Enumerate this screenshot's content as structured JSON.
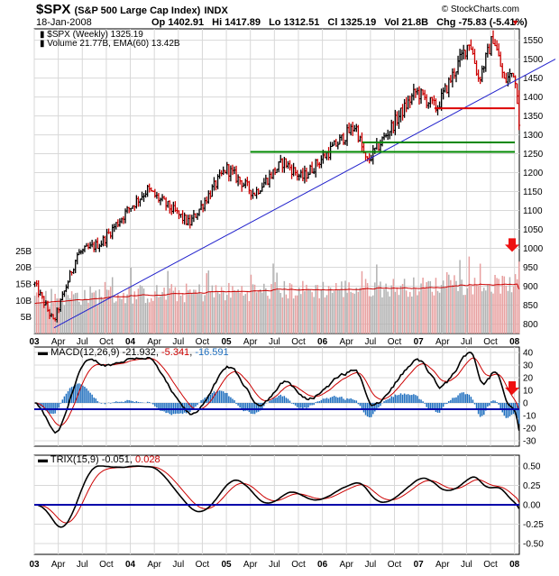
{
  "header": {
    "symbol": "$SPX",
    "name": "(S&P 500 Large Cap Index)",
    "exchange": "INDX",
    "credit": "© StockCharts.com",
    "date": "18-Jan-2008",
    "open_label": "Op",
    "open": "1402.91",
    "high_label": "Hi",
    "high": "1417.89",
    "low_label": "Lo",
    "low": "1312.51",
    "close_label": "Cl",
    "close": "1325.19",
    "volume_label": "Vol",
    "volume": "21.8B",
    "change_label": "Chg",
    "change": "-75.83 (-5.41%)",
    "down_marker": "▼"
  },
  "price_panel": {
    "legend_line1": "$SPX (Weekly) 1325.19",
    "legend_line2": "Volume 21.77B, EMA(60) 13.42B",
    "price_ticks": [
      "1550",
      "1500",
      "1450",
      "1400",
      "1350",
      "1300",
      "1250",
      "1200",
      "1150",
      "1100",
      "1050",
      "1000",
      "950",
      "900",
      "850",
      "800"
    ],
    "volume_ticks": [
      "25B",
      "20B",
      "15B",
      "10B",
      "5B"
    ]
  },
  "macd_panel": {
    "label": "MACD(12,26,9)",
    "macd_value": "-21.932",
    "signal_value": "-5.341",
    "hist_value": "-16.591",
    "ticks": [
      "40",
      "30",
      "20",
      "10",
      "0",
      "-10",
      "-20",
      "-30"
    ]
  },
  "trix_panel": {
    "label": "TRIX(15,9)",
    "trix_value": "-0.051",
    "signal_value": "0.028",
    "ticks": [
      "0.50",
      "0.25",
      "0.00",
      "-0.25",
      "-0.50"
    ]
  },
  "x_axis": {
    "labels": [
      "03",
      "Apr",
      "Jul",
      "Oct",
      "04",
      "Apr",
      "Jul",
      "Oct",
      "05",
      "Apr",
      "Jul",
      "Oct",
      "06",
      "Apr",
      "Jul",
      "Oct",
      "07",
      "Apr",
      "Jul",
      "Oct",
      "08"
    ],
    "year_labels": [
      "03",
      "04",
      "05",
      "06",
      "07",
      "08"
    ]
  },
  "colors": {
    "up": "#000000",
    "down": "#cc0000",
    "trendline": "#2020cc",
    "support_red": "#dd0000",
    "support_green": "#008800",
    "volume_up": "#b0b0b0",
    "volume_down": "#e8a0a0",
    "volume_ema": "#cc0000",
    "macd_hist": "#1f6fbf",
    "zero_line": "#0000aa",
    "grid": "#d8d8d8",
    "arrow": "#ee1111"
  },
  "chart_data": {
    "type": "line",
    "title": "$SPX (S&P 500 Large Cap Index) INDX",
    "frequency": "weekly",
    "x_range": [
      "2003-01",
      "2008-01-18"
    ],
    "price": {
      "ylim": [
        775,
        1580
      ],
      "key_points": [
        {
          "date": "2003-01-03",
          "close": 905
        },
        {
          "date": "2003-03-14",
          "close": 805
        },
        {
          "date": "2003-06-13",
          "close": 985
        },
        {
          "date": "2003-09-12",
          "close": 1015
        },
        {
          "date": "2003-12-26",
          "close": 1105
        },
        {
          "date": "2004-03-05",
          "close": 1155
        },
        {
          "date": "2004-08-13",
          "close": 1065
        },
        {
          "date": "2004-12-31",
          "close": 1212
        },
        {
          "date": "2005-04-15",
          "close": 1145
        },
        {
          "date": "2005-08-05",
          "close": 1230
        },
        {
          "date": "2005-10-14",
          "close": 1185
        },
        {
          "date": "2006-05-05",
          "close": 1325
        },
        {
          "date": "2006-06-16",
          "close": 1225
        },
        {
          "date": "2006-12-22",
          "close": 1415
        },
        {
          "date": "2007-03-09",
          "close": 1370
        },
        {
          "date": "2007-07-13",
          "close": 1550
        },
        {
          "date": "2007-08-17",
          "close": 1445
        },
        {
          "date": "2007-10-12",
          "close": 1560
        },
        {
          "date": "2007-11-23",
          "close": 1440
        },
        {
          "date": "2007-12-28",
          "close": 1468
        },
        {
          "date": "2008-01-11",
          "close": 1401
        },
        {
          "date": "2008-01-18",
          "close": 1325
        }
      ],
      "last": {
        "open": 1402.91,
        "high": 1417.89,
        "low": 1312.51,
        "close": 1325.19
      }
    },
    "annotations": {
      "trendline": [
        {
          "date": "2003-03",
          "price": 790
        },
        {
          "date": "2008-03",
          "price": 1475
        }
      ],
      "horizontal_red": 1370,
      "horizontal_green": [
        1280,
        1255
      ]
    },
    "volume": {
      "unit": "B",
      "last": 21.77,
      "ema60": 13.42,
      "ylim": [
        0,
        30
      ]
    },
    "macd": {
      "params": [
        12,
        26,
        9
      ],
      "macd": -21.932,
      "signal": -5.341,
      "histogram": -16.591,
      "ylim": [
        -30,
        40
      ]
    },
    "trix": {
      "params": [
        15,
        9
      ],
      "trix": -0.051,
      "signal": 0.028,
      "ylim": [
        -0.5,
        0.5
      ]
    }
  }
}
